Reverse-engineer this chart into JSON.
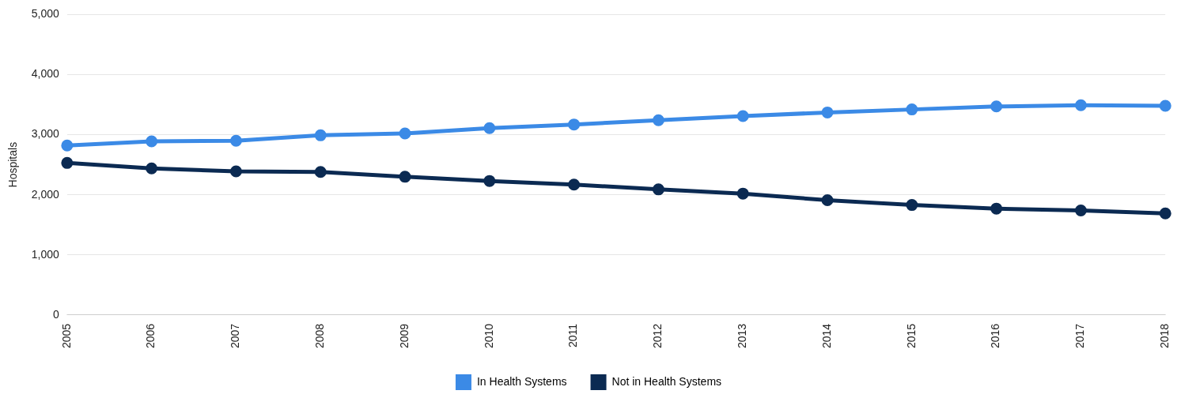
{
  "chart_data": {
    "type": "line",
    "ylabel": "Hospitals",
    "categories": [
      "2005",
      "2006",
      "2007",
      "2008",
      "2009",
      "2010",
      "2011",
      "2012",
      "2013",
      "2014",
      "2015",
      "2016",
      "2017",
      "2018"
    ],
    "series": [
      {
        "name": "In Health Systems",
        "color": "#3b8ae6",
        "values": [
          2820,
          2890,
          2900,
          2990,
          3020,
          3110,
          3170,
          3240,
          3310,
          3370,
          3420,
          3470,
          3490,
          3480
        ]
      },
      {
        "name": "Not in Health Systems",
        "color": "#0b2a52",
        "values": [
          2530,
          2440,
          2390,
          2380,
          2300,
          2230,
          2170,
          2090,
          2020,
          1910,
          1830,
          1770,
          1740,
          1690
        ]
      }
    ],
    "ylim": [
      0,
      5000
    ],
    "yticks": [
      0,
      {
        "value": 1000,
        "label": "1,000"
      },
      {
        "value": 2000,
        "label": "2,000"
      },
      {
        "value": 3000,
        "label": "3,000"
      },
      {
        "value": 4000,
        "label": "4,000"
      },
      {
        "value": 5000,
        "label": "5,000"
      }
    ],
    "grid": "y",
    "legend": "bottom",
    "marker": "circle",
    "line_style": "solid"
  }
}
